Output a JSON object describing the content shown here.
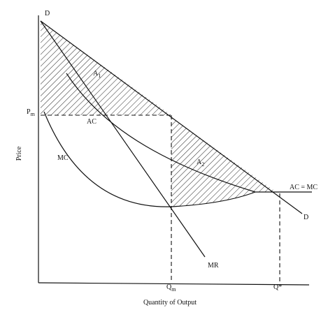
{
  "title_axis_y": "Price",
  "title_axis_x": "Quantity of Output",
  "labels": {
    "d_top": "D",
    "d_bottom": "D",
    "a1": {
      "base": "A",
      "sub": "1"
    },
    "a2": {
      "base": "A",
      "sub": "2"
    },
    "pm": {
      "base": "P",
      "sub": "m"
    },
    "qm": {
      "base": "Q",
      "sub": "m"
    },
    "qstar": "Q*",
    "ac": "AC",
    "mc": "MC",
    "mr": "MR",
    "ac_eq_mc": "AC = MC"
  }
}
